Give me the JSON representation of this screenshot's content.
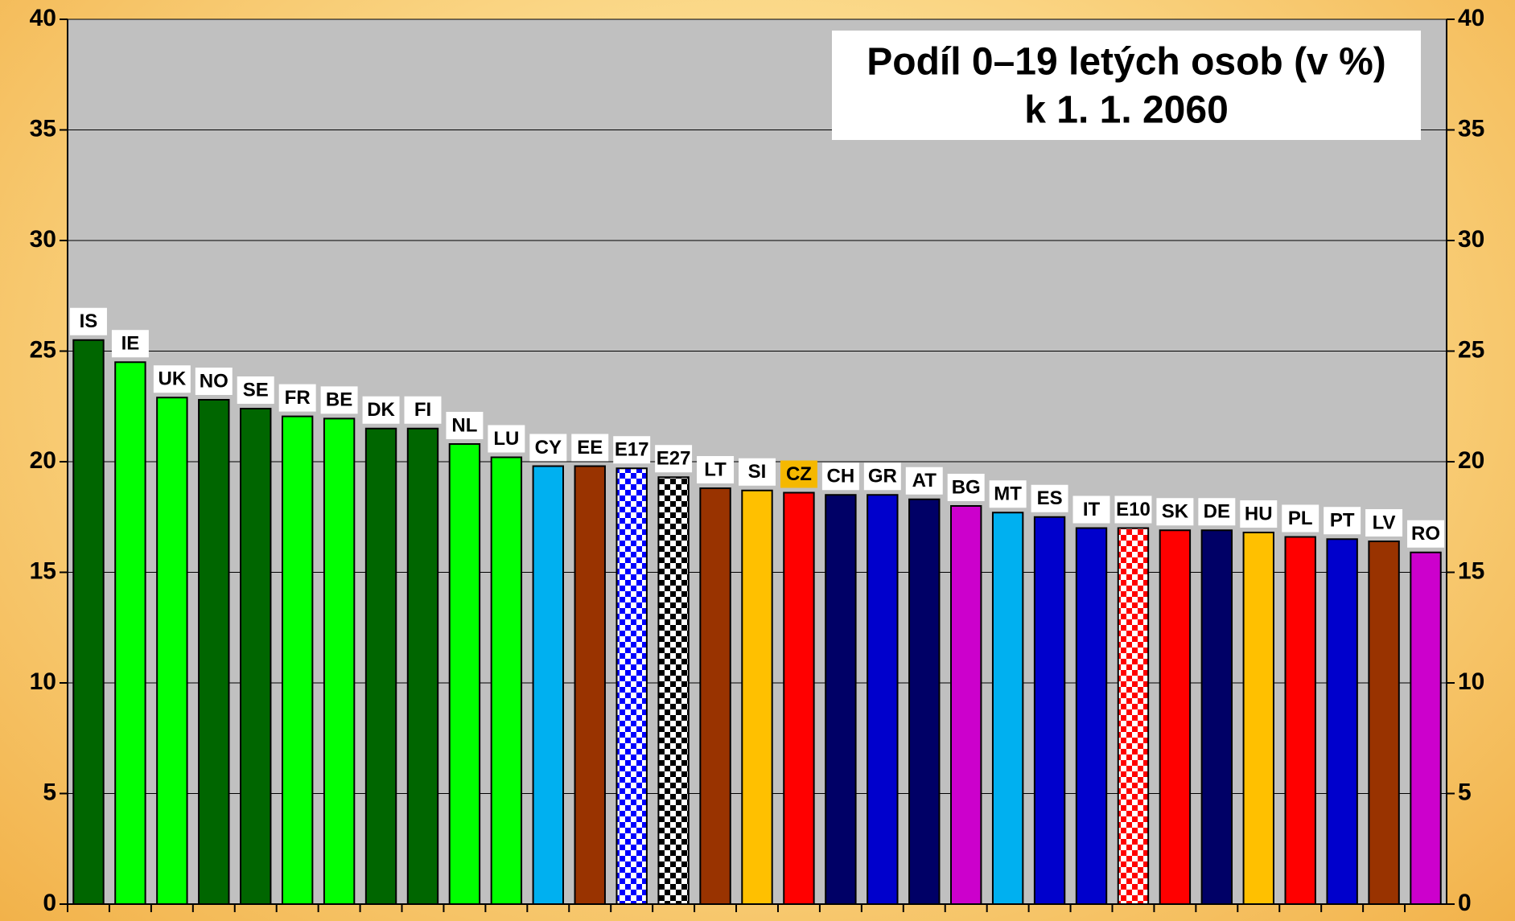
{
  "chart_data": {
    "type": "bar",
    "title": "Podíl 0–19 letých osob (v %)",
    "subtitle": "k 1. 1. 2060",
    "categories": [
      "IS",
      "IE",
      "UK",
      "NO",
      "SE",
      "FR",
      "BE",
      "DK",
      "FI",
      "NL",
      "LU",
      "CY",
      "EE",
      "E17",
      "E27",
      "LT",
      "SI",
      "CZ",
      "CH",
      "GR",
      "AT",
      "BG",
      "MT",
      "ES",
      "IT",
      "E10",
      "SK",
      "DE",
      "HU",
      "PL",
      "PT",
      "LV",
      "RO"
    ],
    "values": [
      25.5,
      24.5,
      22.9,
      22.8,
      22.4,
      22.05,
      21.95,
      21.5,
      21.5,
      20.8,
      20.2,
      19.8,
      19.8,
      19.7,
      19.3,
      18.8,
      18.7,
      18.6,
      18.5,
      18.5,
      18.3,
      18.0,
      17.7,
      17.5,
      17.0,
      17.0,
      16.9,
      16.9,
      16.8,
      16.6,
      16.5,
      16.4,
      15.9
    ],
    "colors": [
      "#006600",
      "#00ff00",
      "#00ff00",
      "#006600",
      "#006600",
      "#00ff00",
      "#00ff00",
      "#006600",
      "#006600",
      "#00ff00",
      "#00ff00",
      "#00b0f0",
      "#993300",
      "checker:#0000ff",
      "checker:#000000",
      "#993300",
      "#ffc000",
      "#ff0000",
      "#000066",
      "#0000cc",
      "#000066",
      "#cc00cc",
      "#00b0f0",
      "#0000cc",
      "#0000cc",
      "checker:#ff0000",
      "#ff0000",
      "#000066",
      "#ffc000",
      "#ff0000",
      "#0000cc",
      "#993300",
      "#cc00cc"
    ],
    "label_highlight": {
      "index": 17,
      "color": "#f5b800"
    },
    "plot_background": "#c0c0c0",
    "ylim": [
      0,
      40
    ],
    "yticks": [
      0,
      5,
      10,
      15,
      20,
      25,
      30,
      35,
      40
    ],
    "grid": true,
    "right_axis": true
  }
}
